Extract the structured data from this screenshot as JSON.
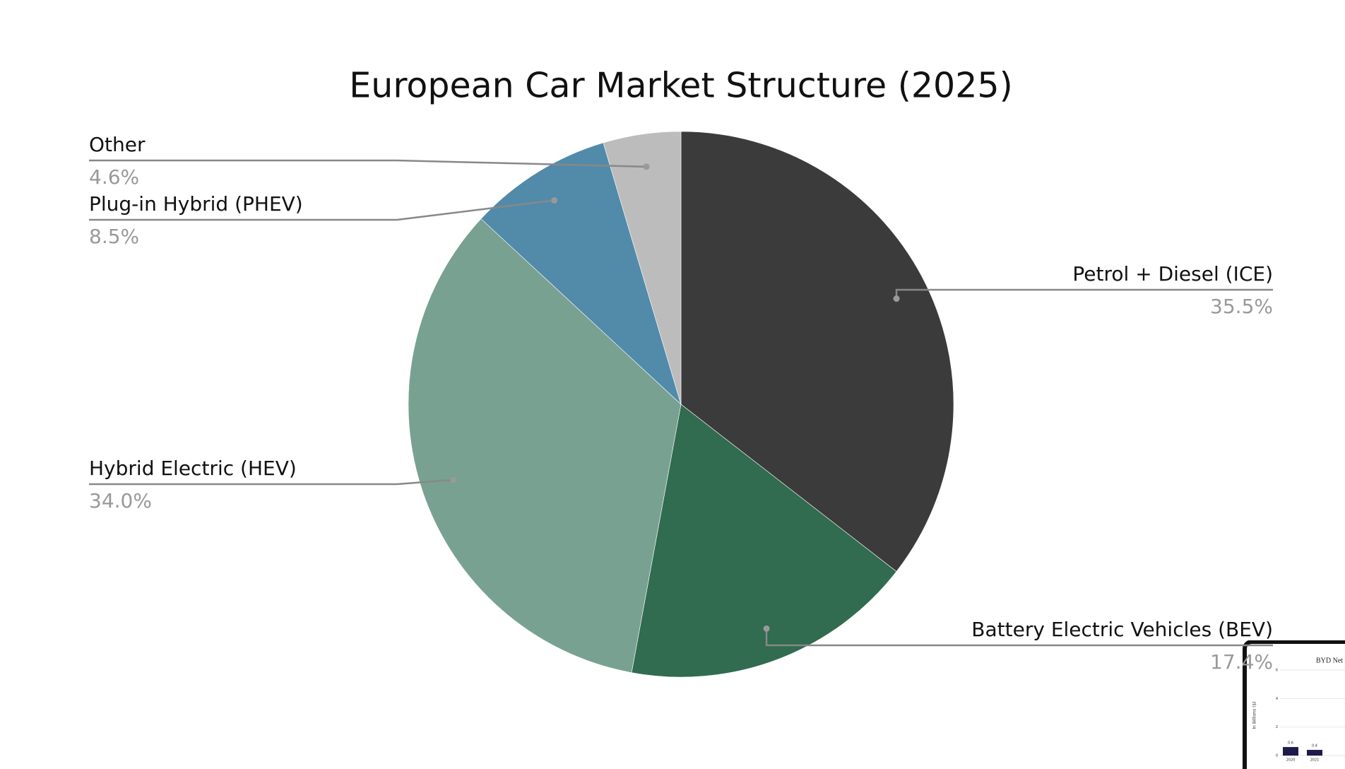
{
  "chart_data": [
    {
      "type": "pie",
      "title": "European Car Market Structure (2025)",
      "categories": [
        "Petrol + Diesel (ICE)",
        "Battery Electric Vehicles (BEV)",
        "Hybrid Electric (HEV)",
        "Plug-in Hybrid (PHEV)",
        "Other"
      ],
      "values": [
        35.5,
        17.4,
        34.0,
        8.5,
        4.6
      ],
      "value_labels": [
        "35.5%",
        "17.4%",
        "34.0%",
        "8.5%",
        "4.6%"
      ],
      "colors": [
        "#3b3b3b",
        "#316b50",
        "#78a191",
        "#528aaa",
        "#bcbcbc"
      ]
    },
    {
      "type": "bar",
      "title": "BYD Net P",
      "ylabel": "In Billions ($)",
      "categories": [
        "2020",
        "2021"
      ],
      "values": [
        0.6,
        0.4
      ],
      "color": "#1e1a4a",
      "ylim": [
        0,
        6
      ],
      "yticks": [
        0,
        2,
        4,
        6
      ],
      "grid": true
    }
  ]
}
